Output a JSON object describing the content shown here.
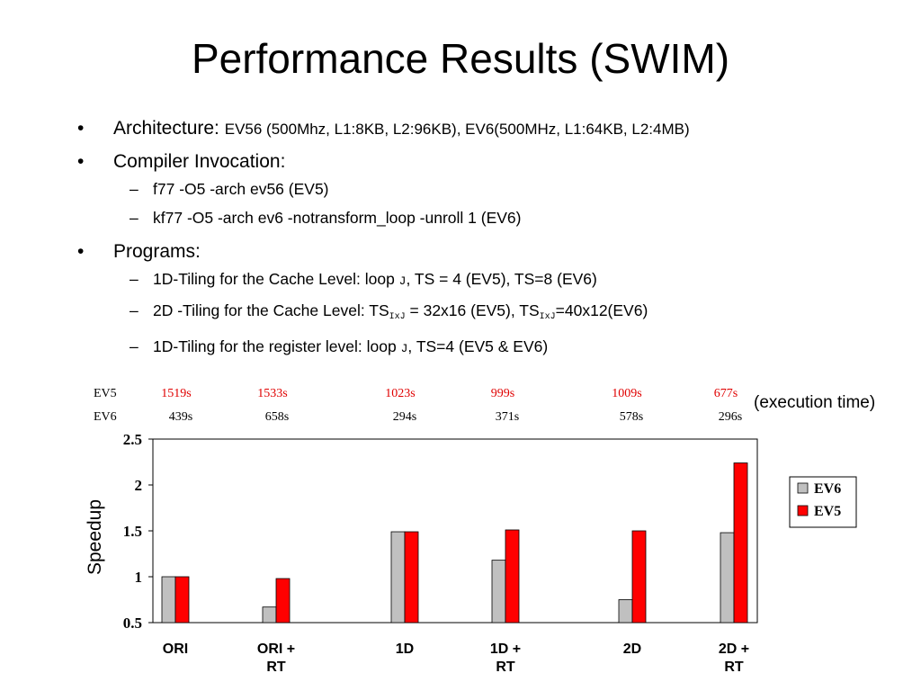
{
  "title": "Performance Results (SWIM)",
  "bullets": {
    "arch_label": "Architecture:",
    "arch_value": "EV56 (500Mhz, L1:8KB, L2:96KB), EV6(500MHz, L1:64KB, L2:4MB)",
    "compiler_label": "Compiler Invocation:",
    "compiler_items": [
      "f77 -O5 -arch ev56 (EV5)",
      "kf77 -O5 -arch ev6  -notransform_loop -unroll 1 (EV6)"
    ],
    "programs_label": "Programs:",
    "prog1": {
      "pre": "1D-Tiling for the Cache Level: loop ",
      "var": "J",
      "post": ", TS = 4 (EV5), TS=8 (EV6)"
    },
    "prog2": {
      "pre": "2D -Tiling for the Cache Level:  TS",
      "sub1": "IxJ",
      "mid": " = 32x16 (EV5), TS",
      "sub2": "IxJ",
      "post": "=40x12(EV6)"
    },
    "prog3": {
      "pre": "1D-Tiling for the register level: loop ",
      "var": "J",
      "post": ", TS=4 (EV5 & EV6)"
    }
  },
  "exec_times": {
    "label": "(execution time)",
    "rows": [
      {
        "name": "EV5",
        "color": "#e00000",
        "values": [
          "1519s",
          "1533s",
          "1023s",
          "999s",
          "1009s",
          "677s"
        ]
      },
      {
        "name": "EV6",
        "color": "#000000",
        "values": [
          "439s",
          "658s",
          "294s",
          "371s",
          "578s",
          "296s"
        ]
      }
    ]
  },
  "chart_data": {
    "type": "bar",
    "categories": [
      "ORI",
      "ORI + RT",
      "1D",
      "1D + RT",
      "2D",
      "2D  + RT"
    ],
    "category_lines": [
      [
        "ORI"
      ],
      [
        "ORI +",
        "RT"
      ],
      [
        "1D"
      ],
      [
        "1D +",
        "RT"
      ],
      [
        "2D"
      ],
      [
        "2D  +",
        "RT"
      ]
    ],
    "series": [
      {
        "name": "EV6",
        "color": "#c0c0c0",
        "values": [
          1.0,
          0.67,
          1.49,
          1.18,
          0.75,
          1.48
        ]
      },
      {
        "name": "EV5",
        "color": "#ff0000",
        "values": [
          1.0,
          0.98,
          1.49,
          1.51,
          1.5,
          2.24
        ]
      }
    ],
    "ylabel": "Speedup",
    "ylim": [
      0.5,
      2.5
    ],
    "yticks": [
      "2.5",
      "2",
      "1.5",
      "1",
      "0.5"
    ],
    "grid": false,
    "legend": "right"
  }
}
